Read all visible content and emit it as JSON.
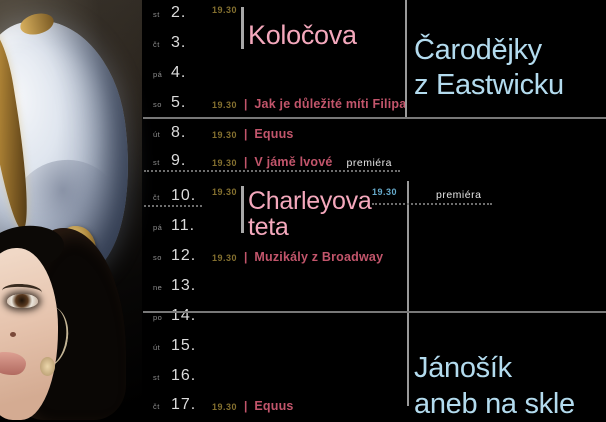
{
  "colors": {
    "background": "#000000",
    "pink_large_title": "#f4a8bc",
    "red_small_title": "#c2556b",
    "cyan_title": "#b3dbee",
    "cyan_time": "#66aacb",
    "gold_time": "#84702f",
    "white_text": "#e6e6e6",
    "line_gray": "#8a8a8a"
  },
  "photo": {
    "alt": "actress portrait with pearl headdress"
  },
  "calendar": {
    "separator": "|",
    "rows": [
      {
        "day": "st",
        "date": "2."
      },
      {
        "day": "čt",
        "date": "3."
      },
      {
        "day": "pá",
        "date": "4."
      },
      {
        "day": "so",
        "date": "5.",
        "time": "19.30",
        "title": "Jak je důležité míti Filipa"
      },
      {
        "day": "út",
        "date": "8.",
        "time": "19.30",
        "title": "Equus"
      },
      {
        "day": "st",
        "date": "9.",
        "time": "19.30",
        "title": "V jámě lvové",
        "note": "premiéra"
      },
      {
        "day": "čt",
        "date": "10."
      },
      {
        "day": "pá",
        "date": "11."
      },
      {
        "day": "so",
        "date": "12.",
        "time": "19.30",
        "title": "Muzikály z Broadway"
      },
      {
        "day": "ne",
        "date": "13."
      },
      {
        "day": "po",
        "date": "14."
      },
      {
        "day": "út",
        "date": "15."
      },
      {
        "day": "st",
        "date": "16."
      },
      {
        "day": "čt",
        "date": "17.",
        "time": "19.30",
        "title": "Equus"
      }
    ],
    "featured": [
      {
        "time": "19.30",
        "title": "Koločova"
      },
      {
        "time": "19.30",
        "title_line1": "Charleyova",
        "title_line2": "teta"
      }
    ]
  },
  "right_column": {
    "show_top": {
      "line1": "Čarodějky",
      "line2": "z Eastwicku"
    },
    "premiere_row": {
      "time": "19.30",
      "note": "premiéra"
    },
    "show_bottom": {
      "line1": "Jánošík",
      "line2": "aneb na skle"
    }
  }
}
